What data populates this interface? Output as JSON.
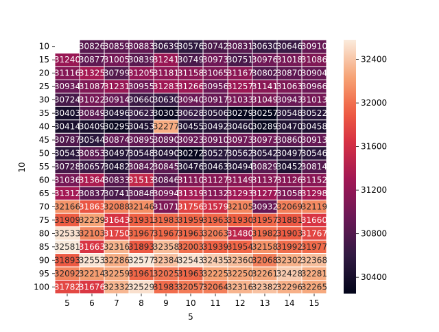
{
  "chart_data": {
    "type": "heatmap",
    "title": "",
    "xlabel": "5",
    "ylabel": "10",
    "x_categories": [
      "5",
      "6",
      "7",
      "8",
      "9",
      "10",
      "11",
      "12",
      "13",
      "14",
      "15"
    ],
    "y_categories": [
      "10",
      "15",
      "20",
      "25",
      "30",
      "35",
      "40",
      "45",
      "50",
      "55",
      "60",
      "65",
      "70",
      "75",
      "80",
      "85",
      "90",
      "95",
      "100"
    ],
    "values": [
      [
        null,
        30826,
        30859,
        30883,
        30639,
        30576,
        30742,
        30831,
        30630,
        30646,
        30910
      ],
      [
        31240,
        30877,
        31005,
        30839,
        31241,
        30749,
        30973,
        30751,
        30976,
        31018,
        31086
      ],
      [
        31116,
        31325,
        30799,
        31205,
        31181,
        31158,
        31065,
        31167,
        30802,
        30870,
        30904
      ],
      [
        30934,
        31087,
        31231,
        30955,
        31283,
        31266,
        30956,
        31257,
        31141,
        31063,
        30966
      ],
      [
        30724,
        31022,
        30914,
        30660,
        30630,
        30940,
        30917,
        31033,
        31049,
        30943,
        31013
      ],
      [
        30403,
        30849,
        30496,
        30623,
        30303,
        30628,
        30506,
        30279,
        30257,
        30548,
        30522
      ],
      [
        30414,
        30409,
        30295,
        30453,
        32277,
        30455,
        30492,
        30460,
        30289,
        30470,
        30458
      ],
      [
        30787,
        30544,
        30874,
        30895,
        30890,
        30923,
        30910,
        30973,
        30973,
        30860,
        30913
      ],
      [
        30543,
        30853,
        30497,
        30548,
        30490,
        30272,
        30527,
        30562,
        30542,
        30497,
        30546
      ],
      [
        30728,
        30657,
        30482,
        30842,
        30845,
        30476,
        30463,
        30494,
        30829,
        30452,
        30814
      ],
      [
        31036,
        31364,
        30833,
        31513,
        30846,
        31110,
        31127,
        31149,
        31137,
        31126,
        31152
      ],
      [
        31312,
        30837,
        30741,
        30848,
        30994,
        31319,
        31132,
        31293,
        31277,
        31058,
        31298
      ],
      [
        32166,
        31863,
        32088,
        32146,
        31071,
        31756,
        31579,
        32105,
        30932,
        32069,
        32119.0
      ],
      [
        31909,
        32239,
        31643,
        31931,
        31983,
        31959,
        31963,
        31930,
        31957,
        31881,
        31660
      ],
      [
        32533,
        32103,
        31750,
        31967,
        31967,
        31963,
        32063,
        31480,
        31982,
        31903,
        31767
      ],
      [
        32581,
        31663,
        32316,
        31893,
        32358,
        32003,
        31939,
        31954,
        32158,
        31992,
        31977
      ],
      [
        31893,
        32553,
        32286,
        32577,
        32384,
        32543,
        32435,
        32360,
        32068,
        32302,
        32368.0
      ],
      [
        32092,
        32214,
        32259,
        31961,
        32025,
        31963,
        32225,
        32250,
        32261,
        32428,
        32281.0
      ],
      [
        31782,
        31676,
        32332,
        32529,
        31983,
        32057,
        32064,
        32316,
        32382,
        32296,
        32265.0
      ]
    ],
    "colorbar": {
      "ticks": [
        30400,
        30800,
        31200,
        31600,
        32000,
        32400
      ],
      "range": [
        30250,
        32580
      ]
    },
    "grid": false,
    "legend": "colorbar-right"
  }
}
